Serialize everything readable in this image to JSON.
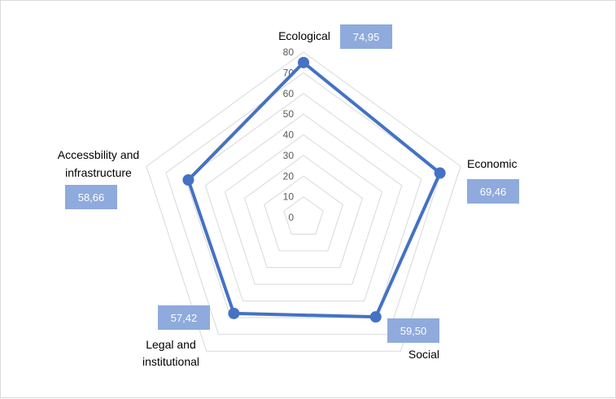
{
  "chart_data": {
    "type": "radar",
    "categories": [
      "Ecological",
      "Economic",
      "Social",
      "Legal and institutional",
      "Accessbility and infrastructure"
    ],
    "series": [
      {
        "values": [
          74.95,
          69.46,
          59.5,
          57.42,
          58.66
        ]
      }
    ],
    "value_labels": [
      "74,95",
      "69,46",
      "59,50",
      "57,42",
      "58,66"
    ],
    "r_ticks": [
      "0",
      "10",
      "20",
      "30",
      "40",
      "50",
      "60",
      "70",
      "80"
    ],
    "rlim": [
      0,
      80
    ],
    "grid": true,
    "legend": "none",
    "colors": {
      "series": "#4472c4",
      "label_box": "#8faadc",
      "grid": "#d9d9d9"
    }
  }
}
